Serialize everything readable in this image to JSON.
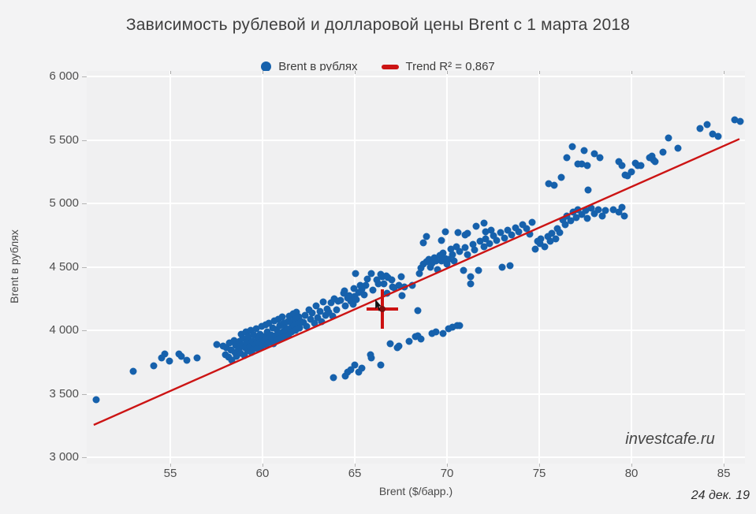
{
  "page": {
    "watermark": "investcafe.ru",
    "date_note": "24 дек. 19"
  },
  "colors": {
    "background": "#f3f3f4",
    "plot_background": "#f0f0f1",
    "gridline": "#ffffff",
    "point_blue": "#1661ac",
    "trend_red": "#cc1414",
    "crosshair_red": "#cc1111",
    "crosshair_center": "#7d0f0f",
    "title_text": "#3e3e3e",
    "tick_text": "#4f4f4f"
  },
  "chart_data": {
    "type": "scatter",
    "title": "Зависимость рублевой и долларовой цены Brent с 1 марта 2018",
    "xlabel": "Brent ($/барр.)",
    "ylabel": "Brent в рублях",
    "xlim": [
      50.47,
      86.15
    ],
    "ylim": [
      2950,
      6045
    ],
    "grid": true,
    "legend_position": "top-center",
    "x_ticks": [
      {
        "v": 55,
        "label": "55"
      },
      {
        "v": 60,
        "label": "60"
      },
      {
        "v": 65,
        "label": "65"
      },
      {
        "v": 70,
        "label": "70"
      },
      {
        "v": 75,
        "label": "75"
      },
      {
        "v": 80,
        "label": "80"
      },
      {
        "v": 85,
        "label": "85"
      }
    ],
    "y_ticks": [
      {
        "v": 3000,
        "label": "3 000"
      },
      {
        "v": 3500,
        "label": "3 500"
      },
      {
        "v": 4000,
        "label": "4 000"
      },
      {
        "v": 4500,
        "label": "4 500"
      },
      {
        "v": 5000,
        "label": "5 000"
      },
      {
        "v": 5500,
        "label": "5 500"
      },
      {
        "v": 6000,
        "label": "6 000"
      }
    ],
    "legend": [
      {
        "name": "Brent в рублях",
        "type": "point",
        "color": "#1661ac"
      },
      {
        "name": "Trend R² = 0,867",
        "type": "line",
        "color": "#cc1414"
      }
    ],
    "trend": {
      "label": "Trend R² = 0,867",
      "r2": "0,867",
      "slope": 64.4,
      "intercept": -20,
      "x_start": 50.85,
      "x_end": 85.85,
      "color": "#cc1414"
    },
    "highlight": {
      "x": 66.5,
      "y": 4170
    },
    "series": [
      {
        "name": "Brent в рублях",
        "color": "#1661ac",
        "points": [
          [
            51.0,
            3455
          ],
          [
            53.0,
            3675
          ],
          [
            54.1,
            3718
          ],
          [
            54.55,
            3782
          ],
          [
            54.7,
            3813
          ],
          [
            54.95,
            3758
          ],
          [
            55.45,
            3813
          ],
          [
            55.6,
            3796
          ],
          [
            55.9,
            3762
          ],
          [
            56.45,
            3783
          ],
          [
            57.5,
            3888
          ],
          [
            57.85,
            3875
          ],
          [
            58.0,
            3810
          ],
          [
            58.05,
            3862
          ],
          [
            58.15,
            3790
          ],
          [
            58.2,
            3900
          ],
          [
            58.3,
            3845
          ],
          [
            58.35,
            3762
          ],
          [
            58.45,
            3918
          ],
          [
            58.5,
            3826
          ],
          [
            58.55,
            3882
          ],
          [
            58.6,
            3795
          ],
          [
            58.7,
            3852
          ],
          [
            58.75,
            3912
          ],
          [
            58.8,
            3820
          ],
          [
            58.85,
            3968
          ],
          [
            58.9,
            3880
          ],
          [
            58.95,
            3940
          ],
          [
            59.0,
            3800
          ],
          [
            59.05,
            3862
          ],
          [
            59.1,
            3985
          ],
          [
            59.15,
            3906
          ],
          [
            59.2,
            3836
          ],
          [
            59.25,
            3950
          ],
          [
            59.3,
            3870
          ],
          [
            59.35,
            4000
          ],
          [
            59.4,
            3826
          ],
          [
            59.45,
            3915
          ],
          [
            59.5,
            3852
          ],
          [
            59.55,
            3960
          ],
          [
            59.6,
            3890
          ],
          [
            59.65,
            4010
          ],
          [
            59.7,
            3856
          ],
          [
            59.75,
            3930
          ],
          [
            59.8,
            3900
          ],
          [
            59.85,
            3970
          ],
          [
            59.9,
            3866
          ],
          [
            59.95,
            4030
          ],
          [
            60.0,
            3896
          ],
          [
            60.05,
            3952
          ],
          [
            60.1,
            3920
          ],
          [
            60.15,
            4044
          ],
          [
            60.2,
            3882
          ],
          [
            60.25,
            3990
          ],
          [
            60.3,
            3936
          ],
          [
            60.35,
            4058
          ],
          [
            60.4,
            3906
          ],
          [
            60.45,
            3966
          ],
          [
            60.5,
            3940
          ],
          [
            60.55,
            4020
          ],
          [
            60.6,
            3896
          ],
          [
            60.65,
            4074
          ],
          [
            60.7,
            3956
          ],
          [
            60.75,
            4006
          ],
          [
            60.8,
            3926
          ],
          [
            60.85,
            4088
          ],
          [
            60.9,
            3970
          ],
          [
            60.95,
            4040
          ],
          [
            61.0,
            3936
          ],
          [
            61.05,
            4104
          ],
          [
            61.1,
            3990
          ],
          [
            61.15,
            4056
          ],
          [
            61.2,
            3950
          ],
          [
            61.25,
            4020
          ],
          [
            61.3,
            4000
          ],
          [
            61.35,
            4070
          ],
          [
            61.4,
            3966
          ],
          [
            61.45,
            4114
          ],
          [
            61.5,
            4010
          ],
          [
            61.55,
            4060
          ],
          [
            61.6,
            3986
          ],
          [
            61.65,
            4130
          ],
          [
            61.7,
            4036
          ],
          [
            61.75,
            4090
          ],
          [
            61.8,
            4000
          ],
          [
            61.85,
            4144
          ],
          [
            61.9,
            4050
          ],
          [
            61.95,
            4106
          ],
          [
            62.0,
            4016
          ],
          [
            62.1,
            4070
          ],
          [
            62.2,
            4060
          ],
          [
            62.3,
            4120
          ],
          [
            62.4,
            4030
          ],
          [
            62.5,
            4160
          ],
          [
            62.6,
            4086
          ],
          [
            62.7,
            4136
          ],
          [
            62.8,
            4056
          ],
          [
            62.9,
            4190
          ],
          [
            63.0,
            4100
          ],
          [
            63.1,
            4150
          ],
          [
            63.2,
            4070
          ],
          [
            63.3,
            4224
          ],
          [
            63.4,
            4120
          ],
          [
            63.5,
            4170
          ],
          [
            63.6,
            4145
          ],
          [
            63.7,
            4215
          ],
          [
            63.8,
            4110
          ],
          [
            63.9,
            4250
          ],
          [
            64.0,
            4165
          ],
          [
            64.1,
            4230
          ],
          [
            64.25,
            4235
          ],
          [
            64.4,
            4292
          ],
          [
            64.45,
            4310
          ],
          [
            64.5,
            4190
          ],
          [
            64.6,
            4256
          ],
          [
            64.7,
            4275
          ],
          [
            64.8,
            4230
          ],
          [
            64.9,
            4205
          ],
          [
            64.95,
            4330
          ],
          [
            65.0,
            4270
          ],
          [
            65.05,
            4445
          ],
          [
            65.1,
            4245
          ],
          [
            65.2,
            4300
          ],
          [
            65.3,
            4355
          ],
          [
            65.4,
            4325
          ],
          [
            65.5,
            4282
          ],
          [
            65.6,
            4356
          ],
          [
            65.7,
            4405
          ],
          [
            65.9,
            4446
          ],
          [
            66.0,
            4320
          ],
          [
            66.2,
            4396
          ],
          [
            66.3,
            4366
          ],
          [
            66.4,
            4440
          ],
          [
            66.5,
            4420
          ],
          [
            66.6,
            4370
          ],
          [
            66.7,
            4432
          ],
          [
            66.75,
            4290
          ],
          [
            66.8,
            4414
          ],
          [
            67.0,
            4400
          ],
          [
            67.05,
            4345
          ],
          [
            67.15,
            4338
          ],
          [
            67.4,
            4352
          ],
          [
            67.5,
            4426
          ],
          [
            67.55,
            4276
          ],
          [
            67.7,
            4340
          ],
          [
            68.1,
            4352
          ],
          [
            68.4,
            4156
          ],
          [
            68.5,
            4450
          ],
          [
            68.6,
            4490
          ],
          [
            68.7,
            4520
          ],
          [
            68.7,
            4692
          ],
          [
            68.9,
            4540
          ],
          [
            68.9,
            4742
          ],
          [
            69.0,
            4560
          ],
          [
            69.1,
            4500
          ],
          [
            69.2,
            4530
          ],
          [
            69.3,
            4575
          ],
          [
            69.4,
            4545
          ],
          [
            69.5,
            4480
          ],
          [
            69.6,
            4590
          ],
          [
            69.7,
            4550
          ],
          [
            69.7,
            4711
          ],
          [
            69.8,
            4610
          ],
          [
            69.9,
            4565
          ],
          [
            69.9,
            4780
          ],
          [
            70.0,
            4520
          ],
          [
            70.1,
            4560
          ],
          [
            70.2,
            4640
          ],
          [
            70.3,
            4600
          ],
          [
            70.4,
            4550
          ],
          [
            70.5,
            4660
          ],
          [
            70.6,
            4773
          ],
          [
            70.7,
            4620
          ],
          [
            70.9,
            4475
          ],
          [
            71.0,
            4650
          ],
          [
            71.0,
            4754
          ],
          [
            71.1,
            4600
          ],
          [
            71.1,
            4765
          ],
          [
            71.3,
            4420
          ],
          [
            71.3,
            4365
          ],
          [
            71.4,
            4680
          ],
          [
            71.5,
            4635
          ],
          [
            71.6,
            4823
          ],
          [
            71.7,
            4475
          ],
          [
            71.8,
            4700
          ],
          [
            72.0,
            4660
          ],
          [
            72.0,
            4847
          ],
          [
            72.1,
            4720
          ],
          [
            72.1,
            4780
          ],
          [
            72.3,
            4685
          ],
          [
            72.4,
            4792
          ],
          [
            72.5,
            4745
          ],
          [
            72.7,
            4710
          ],
          [
            72.9,
            4770
          ],
          [
            73.0,
            4500
          ],
          [
            73.1,
            4730
          ],
          [
            73.3,
            4790
          ],
          [
            73.4,
            4510
          ],
          [
            73.5,
            4750
          ],
          [
            73.7,
            4810
          ],
          [
            73.9,
            4775
          ],
          [
            74.1,
            4835
          ],
          [
            74.3,
            4800
          ],
          [
            74.5,
            4760
          ],
          [
            74.6,
            4850
          ],
          [
            74.8,
            4642
          ],
          [
            74.9,
            4700
          ],
          [
            75.05,
            4682
          ],
          [
            75.1,
            4722
          ],
          [
            75.3,
            4660
          ],
          [
            75.45,
            4740
          ],
          [
            75.6,
            4702
          ],
          [
            75.7,
            4762
          ],
          [
            75.9,
            4722
          ],
          [
            76.0,
            4800
          ],
          [
            76.1,
            4772
          ],
          [
            76.3,
            4870
          ],
          [
            76.4,
            4832
          ],
          [
            76.5,
            4902
          ],
          [
            76.7,
            4862
          ],
          [
            76.85,
            4932
          ],
          [
            77.0,
            4892
          ],
          [
            77.1,
            4952
          ],
          [
            77.3,
            4912
          ],
          [
            77.5,
            4942
          ],
          [
            77.6,
            4882
          ],
          [
            77.8,
            4962
          ],
          [
            78.0,
            4922
          ],
          [
            78.2,
            4952
          ],
          [
            78.4,
            4902
          ],
          [
            78.6,
            4942
          ],
          [
            79.0,
            4952
          ],
          [
            79.3,
            4932
          ],
          [
            79.5,
            4972
          ],
          [
            79.6,
            4902
          ],
          [
            75.5,
            5155
          ],
          [
            75.8,
            5145
          ],
          [
            76.2,
            5205
          ],
          [
            76.5,
            5362
          ],
          [
            76.8,
            5448
          ],
          [
            77.1,
            5312
          ],
          [
            77.3,
            5310
          ],
          [
            77.45,
            5420
          ],
          [
            77.6,
            5298
          ],
          [
            77.65,
            5105
          ],
          [
            78.0,
            5390
          ],
          [
            78.3,
            5362
          ],
          [
            79.3,
            5330
          ],
          [
            79.5,
            5302
          ],
          [
            79.65,
            5224
          ],
          [
            79.8,
            5218
          ],
          [
            80.0,
            5248
          ],
          [
            80.2,
            5318
          ],
          [
            80.35,
            5298
          ],
          [
            80.5,
            5300
          ],
          [
            81.0,
            5360
          ],
          [
            81.1,
            5372
          ],
          [
            81.2,
            5342
          ],
          [
            81.3,
            5330
          ],
          [
            81.7,
            5404
          ],
          [
            82.0,
            5516
          ],
          [
            82.5,
            5436
          ],
          [
            83.7,
            5590
          ],
          [
            84.1,
            5620
          ],
          [
            84.4,
            5548
          ],
          [
            84.7,
            5528
          ],
          [
            85.6,
            5662
          ],
          [
            85.9,
            5650
          ],
          [
            63.85,
            3627
          ],
          [
            64.5,
            3640
          ],
          [
            64.6,
            3671
          ],
          [
            64.8,
            3690
          ],
          [
            65.0,
            3727
          ],
          [
            65.2,
            3671
          ],
          [
            65.4,
            3702
          ],
          [
            65.85,
            3807
          ],
          [
            65.9,
            3783
          ],
          [
            66.4,
            3727
          ],
          [
            66.9,
            3895
          ],
          [
            67.3,
            3864
          ],
          [
            67.4,
            3876
          ],
          [
            67.95,
            3913
          ],
          [
            68.3,
            3950
          ],
          [
            68.4,
            3957
          ],
          [
            68.6,
            3932
          ],
          [
            69.2,
            3975
          ],
          [
            69.4,
            3987
          ],
          [
            69.8,
            3975
          ],
          [
            70.1,
            4010
          ],
          [
            70.3,
            4028
          ],
          [
            70.55,
            4038
          ],
          [
            70.7,
            4040
          ]
        ]
      }
    ]
  }
}
